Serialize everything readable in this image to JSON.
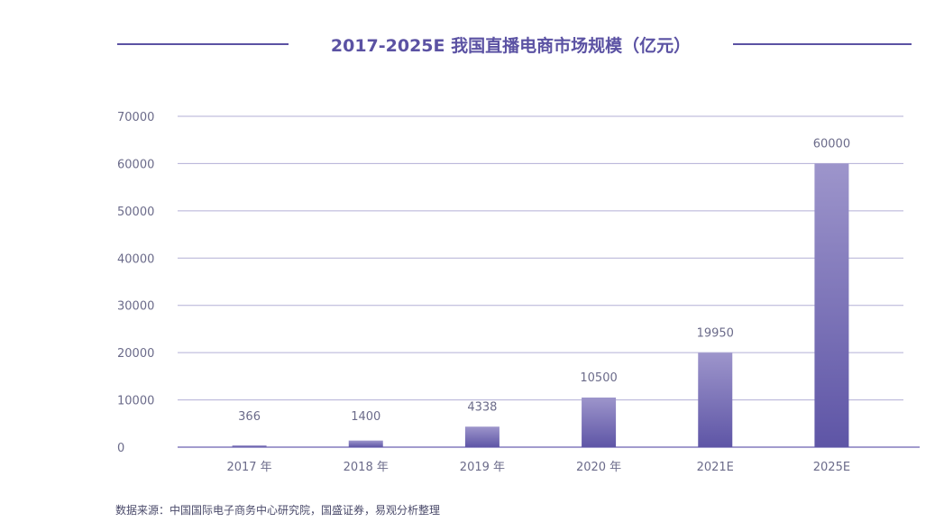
{
  "chart_data": {
    "type": "bar",
    "title": "2017-2025E 我国直播电商市场规模（亿元）",
    "xlabel": "",
    "ylabel": "",
    "categories": [
      "2017 年",
      "2018 年",
      "2019 年",
      "2020 年",
      "2021E",
      "2025E"
    ],
    "values": [
      366,
      1400,
      4338,
      10500,
      19950,
      60000
    ],
    "value_labels": [
      "366",
      "1400",
      "4338",
      "10500",
      "19950",
      "60000"
    ],
    "yticks": [
      "0",
      "10000",
      "20000",
      "30000",
      "40000",
      "50000",
      "60000",
      "70000"
    ],
    "ylim": [
      0,
      70000
    ],
    "grid": true,
    "legend": "none",
    "colors": {
      "bar_top": "#9d95cb",
      "bar_bottom": "#5e55a6",
      "grid": "#b3afd6",
      "axis": "#6a62b0",
      "title": "#5b52a3",
      "tick_text": "#6b6b8a"
    }
  },
  "source": "数据来源：中国国际电子商务中心研究院，国盛证券，易观分析整理"
}
